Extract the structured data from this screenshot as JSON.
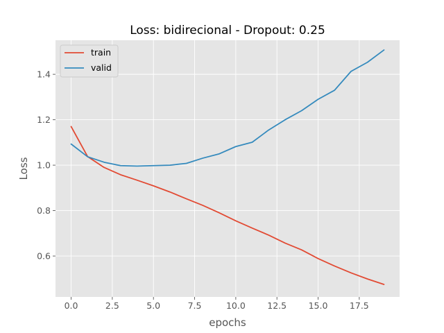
{
  "chart_data": {
    "type": "line",
    "title": "Loss: bidirecional - Dropout: 0.25",
    "xlabel": "epochs",
    "ylabel": "Loss",
    "xlim": [
      -0.95,
      19.95
    ],
    "ylim": [
      0.42,
      1.55
    ],
    "xticks": [
      0,
      2.5,
      5,
      7.5,
      10,
      12.5,
      15,
      17.5
    ],
    "xtick_labels": [
      "0.0",
      "2.5",
      "5.0",
      "7.5",
      "10.0",
      "12.5",
      "15.0",
      "17.5"
    ],
    "yticks": [
      0.6,
      0.8,
      1.0,
      1.2,
      1.4
    ],
    "ytick_labels": [
      "0.6",
      "0.8",
      "1.0",
      "1.2",
      "1.4"
    ],
    "grid": true,
    "legend_position": "top-left",
    "x": [
      0,
      1,
      2,
      3,
      4,
      5,
      6,
      7,
      8,
      9,
      10,
      11,
      12,
      13,
      14,
      15,
      16,
      17,
      18,
      19
    ],
    "series": [
      {
        "name": "train",
        "color": "#e24a33",
        "values": [
          1.17,
          1.038,
          0.99,
          0.958,
          0.934,
          0.909,
          0.882,
          0.852,
          0.823,
          0.79,
          0.755,
          0.723,
          0.692,
          0.657,
          0.627,
          0.589,
          0.556,
          0.526,
          0.499,
          0.475
        ]
      },
      {
        "name": "valid",
        "color": "#348abd",
        "values": [
          1.093,
          1.037,
          1.013,
          0.998,
          0.996,
          0.998,
          1.0,
          1.008,
          1.031,
          1.05,
          1.082,
          1.101,
          1.155,
          1.2,
          1.24,
          1.29,
          1.33,
          1.413,
          1.453,
          1.507
        ]
      }
    ]
  }
}
